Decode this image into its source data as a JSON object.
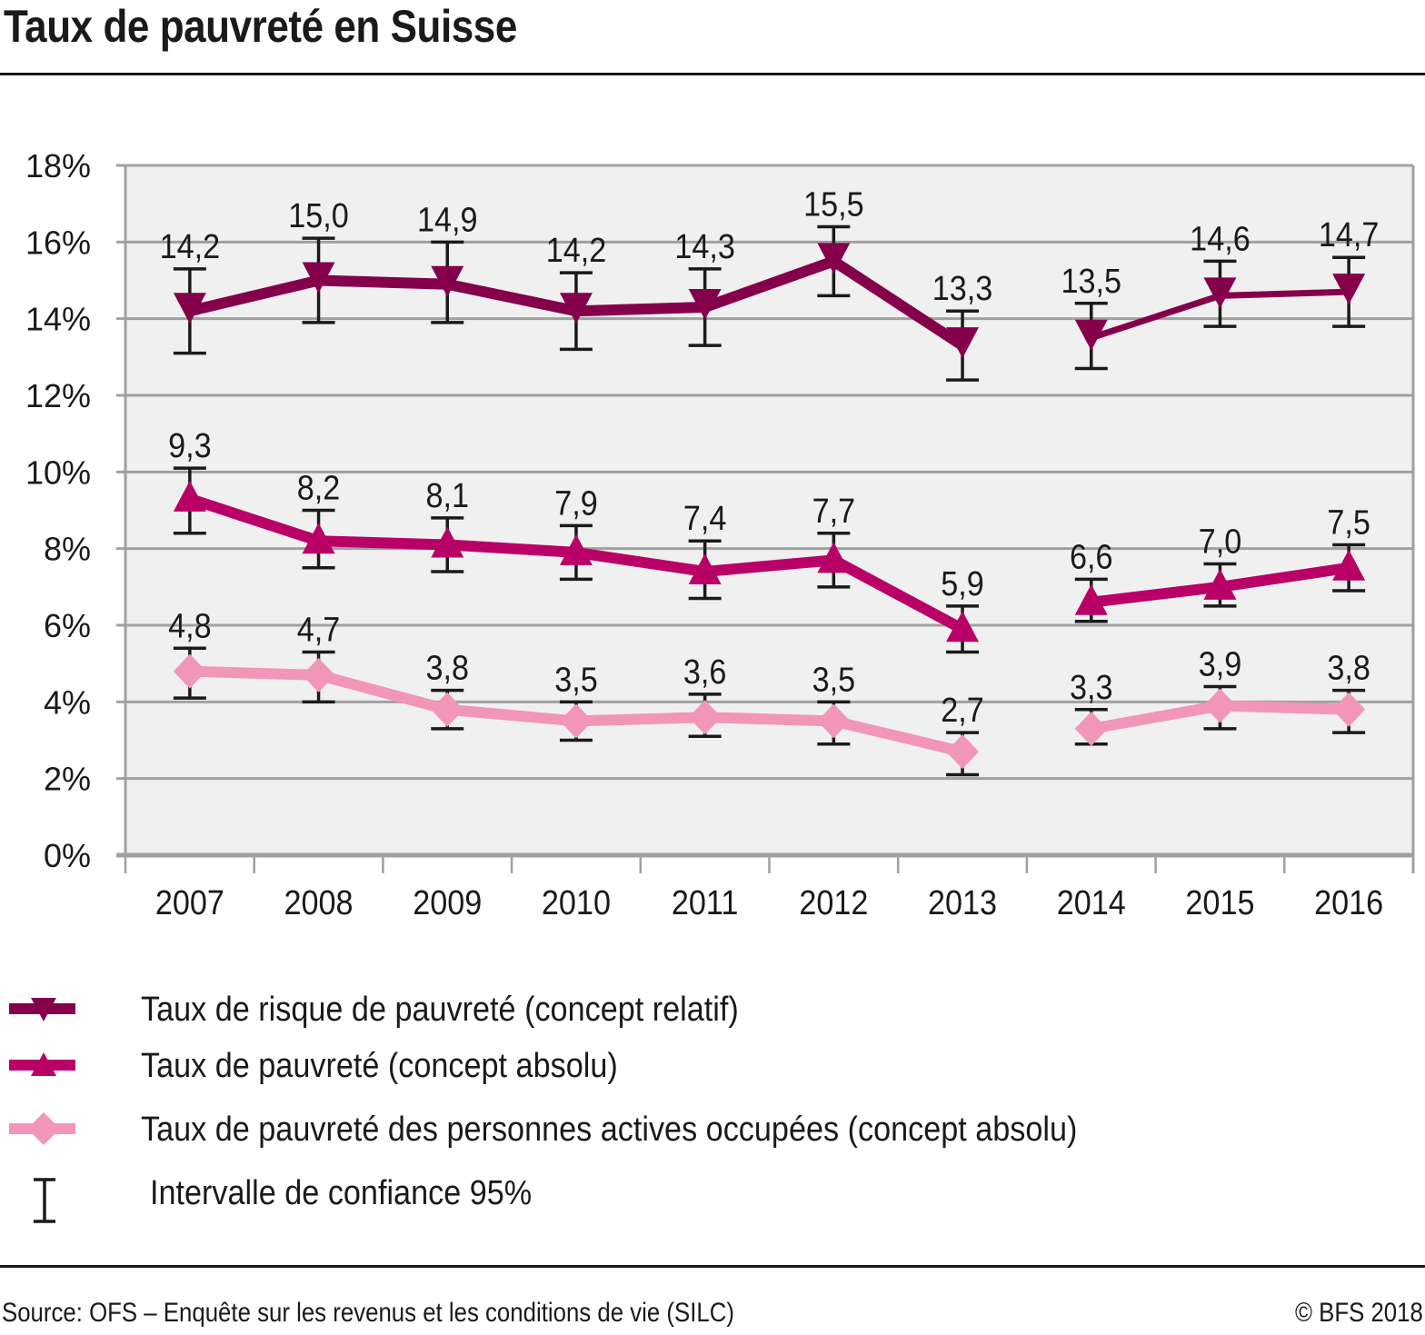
{
  "title": "Taux de pauvreté en Suisse",
  "footer": {
    "source": "Source: OFS – Enquête sur les revenus et les conditions de vie (SILC)",
    "copyright": "© BFS 2018"
  },
  "chart_data": {
    "type": "line",
    "title": "Taux de pauvreté en Suisse",
    "xlabel": "",
    "ylabel": "",
    "x": [
      "2007",
      "2008",
      "2009",
      "2010",
      "2011",
      "2012",
      "2013",
      "2014",
      "2015",
      "2016"
    ],
    "ylim": [
      0,
      18
    ],
    "yticks": [
      0,
      2,
      4,
      6,
      8,
      10,
      12,
      14,
      16,
      18
    ],
    "ytick_labels": [
      "0%",
      "2%",
      "4%",
      "6%",
      "8%",
      "10%",
      "12%",
      "14%",
      "16%",
      "18%"
    ],
    "grid": true,
    "series_break_after": "2013",
    "series": [
      {
        "name": "Taux de risque de pauvreté (concept relatif)",
        "color": "#85004b",
        "marker": "triangle-down",
        "values": [
          14.2,
          15.0,
          14.9,
          14.2,
          14.3,
          15.5,
          13.3,
          13.5,
          14.6,
          14.7
        ],
        "labels": [
          "14,2",
          "15,0",
          "14,9",
          "14,2",
          "14,3",
          "15,5",
          "13,3",
          "13,5",
          "14,6",
          "14,7"
        ],
        "ci_low": [
          13.1,
          13.9,
          13.9,
          13.2,
          13.3,
          14.6,
          12.4,
          12.7,
          13.8,
          13.8
        ],
        "ci_high": [
          15.3,
          16.1,
          16.0,
          15.2,
          15.3,
          16.4,
          14.2,
          14.4,
          15.5,
          15.6
        ]
      },
      {
        "name": "Taux de pauvreté (concept absolu)",
        "color": "#b90066",
        "marker": "triangle-up",
        "values": [
          9.3,
          8.2,
          8.1,
          7.9,
          7.4,
          7.7,
          5.9,
          6.6,
          7.0,
          7.5
        ],
        "labels": [
          "9,3",
          "8,2",
          "8,1",
          "7,9",
          "7,4",
          "7,7",
          "5,9",
          "6,6",
          "7,0",
          "7,5"
        ],
        "ci_low": [
          8.4,
          7.5,
          7.4,
          7.2,
          6.7,
          7.0,
          5.3,
          6.1,
          6.5,
          6.9
        ],
        "ci_high": [
          10.1,
          9.0,
          8.8,
          8.6,
          8.2,
          8.4,
          6.5,
          7.2,
          7.6,
          8.1
        ]
      },
      {
        "name": "Taux de pauvreté des personnes actives occupées (concept absolu)",
        "color": "#f196b8",
        "marker": "diamond",
        "values": [
          4.8,
          4.7,
          3.8,
          3.5,
          3.6,
          3.5,
          2.7,
          3.3,
          3.9,
          3.8
        ],
        "labels": [
          "4,8",
          "4,7",
          "3,8",
          "3,5",
          "3,6",
          "3,5",
          "2,7",
          "3,3",
          "3,9",
          "3,8"
        ],
        "ci_low": [
          4.1,
          4.0,
          3.3,
          3.0,
          3.1,
          2.9,
          2.1,
          2.9,
          3.3,
          3.2
        ],
        "ci_high": [
          5.4,
          5.3,
          4.3,
          4.0,
          4.2,
          4.0,
          3.2,
          3.8,
          4.4,
          4.3
        ]
      }
    ],
    "legend": {
      "position": "bottom-left",
      "entries": [
        "Taux de risque de pauvreté (concept relatif)",
        "Taux de pauvreté (concept absolu)",
        "Taux de pauvreté des personnes actives occupées (concept absolu)",
        "Intervalle de confiance 95%"
      ]
    },
    "colors": {
      "plot_background": "#f0f0f0",
      "gridline": "#a0a0a0",
      "error_bar": "#1a1a1a"
    }
  }
}
